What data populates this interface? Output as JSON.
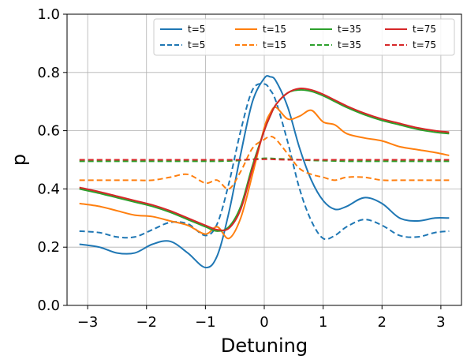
{
  "chart_data": {
    "type": "line",
    "title": "",
    "xlabel": "Detuning",
    "ylabel": "p",
    "xlim": [
      -3.35,
      3.35
    ],
    "ylim": [
      0.0,
      1.0
    ],
    "xticks": [
      -3,
      -2,
      -1,
      0,
      1,
      2,
      3
    ],
    "xtick_labels": [
      "−3",
      "−2",
      "−1",
      "0",
      "1",
      "2",
      "3"
    ],
    "yticks": [
      0.0,
      0.2,
      0.4,
      0.6,
      0.8,
      1.0
    ],
    "ytick_labels": [
      "0.0",
      "0.2",
      "0.4",
      "0.6",
      "0.8",
      "1.0"
    ],
    "grid": true,
    "legend": {
      "placement": "top-right",
      "columns": 4
    },
    "x": [
      -3.14,
      -2.8,
      -2.5,
      -2.2,
      -1.9,
      -1.6,
      -1.3,
      -1.0,
      -0.8,
      -0.6,
      -0.4,
      -0.2,
      0.0,
      0.1,
      0.2,
      0.4,
      0.6,
      0.8,
      1.0,
      1.2,
      1.4,
      1.7,
      2.0,
      2.3,
      2.6,
      2.9,
      3.14
    ],
    "series": [
      {
        "name": "t=5",
        "color": "#1f77b4",
        "dash": "solid",
        "values": [
          0.21,
          0.2,
          0.18,
          0.18,
          0.21,
          0.22,
          0.18,
          0.13,
          0.17,
          0.32,
          0.52,
          0.7,
          0.78,
          0.785,
          0.77,
          0.68,
          0.54,
          0.43,
          0.36,
          0.33,
          0.34,
          0.37,
          0.35,
          0.3,
          0.29,
          0.3,
          0.3
        ]
      },
      {
        "name": "t=5",
        "color": "#1f77b4",
        "dash": "dashed",
        "values": [
          0.255,
          0.25,
          0.235,
          0.235,
          0.26,
          0.285,
          0.28,
          0.24,
          0.28,
          0.42,
          0.6,
          0.74,
          0.76,
          0.74,
          0.7,
          0.56,
          0.4,
          0.29,
          0.23,
          0.24,
          0.27,
          0.295,
          0.275,
          0.24,
          0.235,
          0.25,
          0.255
        ]
      },
      {
        "name": "t=15",
        "color": "#ff7f0e",
        "dash": "solid",
        "values": [
          0.35,
          0.34,
          0.325,
          0.31,
          0.305,
          0.29,
          0.275,
          0.245,
          0.27,
          0.23,
          0.3,
          0.45,
          0.61,
          0.66,
          0.68,
          0.64,
          0.65,
          0.67,
          0.63,
          0.62,
          0.59,
          0.575,
          0.565,
          0.545,
          0.535,
          0.525,
          0.515
        ]
      },
      {
        "name": "t=15",
        "color": "#ff7f0e",
        "dash": "dashed",
        "values": [
          0.43,
          0.43,
          0.43,
          0.43,
          0.43,
          0.44,
          0.45,
          0.42,
          0.43,
          0.4,
          0.46,
          0.54,
          0.57,
          0.58,
          0.57,
          0.52,
          0.47,
          0.45,
          0.44,
          0.43,
          0.44,
          0.44,
          0.43,
          0.43,
          0.43,
          0.43,
          0.43
        ]
      },
      {
        "name": "t=35",
        "color": "#2ca02c",
        "dash": "solid",
        "values": [
          0.4,
          0.385,
          0.37,
          0.355,
          0.34,
          0.32,
          0.295,
          0.27,
          0.255,
          0.27,
          0.34,
          0.48,
          0.6,
          0.65,
          0.69,
          0.73,
          0.74,
          0.735,
          0.72,
          0.7,
          0.68,
          0.655,
          0.635,
          0.62,
          0.605,
          0.595,
          0.59
        ]
      },
      {
        "name": "t=35",
        "color": "#2ca02c",
        "dash": "dashed",
        "values": [
          0.495,
          0.495,
          0.495,
          0.495,
          0.495,
          0.495,
          0.495,
          0.495,
          0.495,
          0.496,
          0.498,
          0.502,
          0.505,
          0.505,
          0.504,
          0.502,
          0.5,
          0.498,
          0.497,
          0.496,
          0.495,
          0.495,
          0.495,
          0.495,
          0.495,
          0.495,
          0.495
        ]
      },
      {
        "name": "t=75",
        "color": "#d62728",
        "dash": "solid",
        "values": [
          0.405,
          0.39,
          0.375,
          0.36,
          0.345,
          0.325,
          0.3,
          0.275,
          0.26,
          0.265,
          0.33,
          0.47,
          0.6,
          0.65,
          0.69,
          0.73,
          0.745,
          0.74,
          0.725,
          0.705,
          0.685,
          0.66,
          0.64,
          0.625,
          0.61,
          0.6,
          0.595
        ]
      },
      {
        "name": "t=75",
        "color": "#d62728",
        "dash": "dashed",
        "values": [
          0.5,
          0.5,
          0.5,
          0.5,
          0.5,
          0.5,
          0.5,
          0.5,
          0.5,
          0.5,
          0.5,
          0.501,
          0.502,
          0.502,
          0.501,
          0.5,
          0.5,
          0.5,
          0.5,
          0.5,
          0.5,
          0.5,
          0.5,
          0.5,
          0.5,
          0.5,
          0.5
        ]
      }
    ]
  }
}
